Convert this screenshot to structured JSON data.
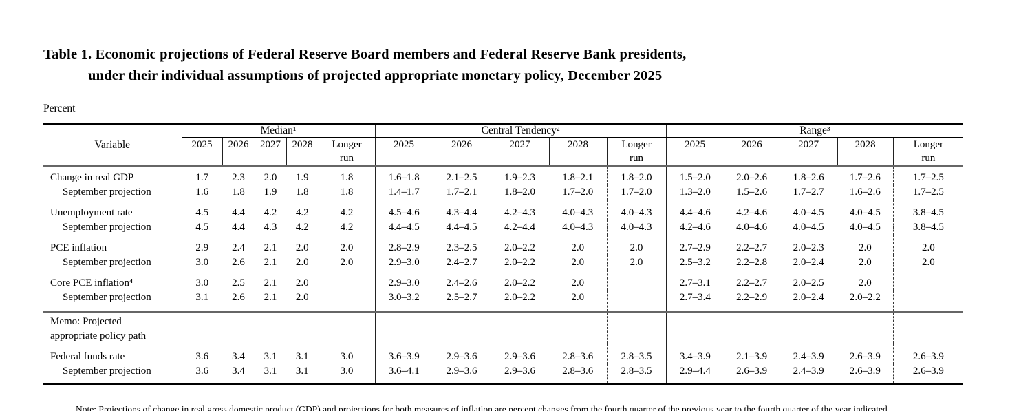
{
  "page": {
    "title_line1": "Table 1. Economic projections of Federal Reserve Board members and Federal Reserve Bank presidents,",
    "title_line2": "under their individual assumptions of projected appropriate monetary policy, December 2025",
    "unit_label": "Percent",
    "note_partial": "Note: Projections of change in real gross domestic product (GDP) and projections for both measures of inflation are percent changes from the fourth quarter of the previous year to the fourth quarter of the year indicated."
  },
  "table": {
    "variable_header": "Variable",
    "group_headers": [
      "Median¹",
      "Central Tendency²",
      "Range³"
    ],
    "year_headers": [
      "2025",
      "2026",
      "2027",
      "2028"
    ],
    "longer_run_lines": [
      "Longer",
      "run"
    ],
    "memo_lines": [
      "Memo: Projected",
      "appropriate policy path"
    ],
    "rows": [
      {
        "type": "data",
        "label": "Change in real GDP",
        "indent": false,
        "group_start": true,
        "first": true,
        "median": [
          "1.7",
          "2.3",
          "2.0",
          "1.9",
          "1.8"
        ],
        "central_tendency": [
          "1.6–1.8",
          "2.1–2.5",
          "1.9–2.3",
          "1.8–2.1",
          "1.8–2.0"
        ],
        "range": [
          "1.5–2.0",
          "2.0–2.6",
          "1.8–2.6",
          "1.7–2.6",
          "1.7–2.5"
        ]
      },
      {
        "type": "data",
        "label": "September projection",
        "indent": true,
        "median": [
          "1.6",
          "1.8",
          "1.9",
          "1.8",
          "1.8"
        ],
        "central_tendency": [
          "1.4–1.7",
          "1.7–2.1",
          "1.8–2.0",
          "1.7–2.0",
          "1.7–2.0"
        ],
        "range": [
          "1.3–2.0",
          "1.5–2.6",
          "1.7–2.7",
          "1.6–2.6",
          "1.7–2.5"
        ]
      },
      {
        "type": "data",
        "label": "Unemployment rate",
        "indent": false,
        "group_start": true,
        "median": [
          "4.5",
          "4.4",
          "4.2",
          "4.2",
          "4.2"
        ],
        "central_tendency": [
          "4.5–4.6",
          "4.3–4.4",
          "4.2–4.3",
          "4.0–4.3",
          "4.0–4.3"
        ],
        "range": [
          "4.4–4.6",
          "4.2–4.6",
          "4.0–4.5",
          "4.0–4.5",
          "3.8–4.5"
        ]
      },
      {
        "type": "data",
        "label": "September projection",
        "indent": true,
        "median": [
          "4.5",
          "4.4",
          "4.3",
          "4.2",
          "4.2"
        ],
        "central_tendency": [
          "4.4–4.5",
          "4.4–4.5",
          "4.2–4.4",
          "4.0–4.3",
          "4.0–4.3"
        ],
        "range": [
          "4.2–4.6",
          "4.0–4.6",
          "4.0–4.5",
          "4.0–4.5",
          "3.8–4.5"
        ]
      },
      {
        "type": "data",
        "label": "PCE inflation",
        "indent": false,
        "group_start": true,
        "median": [
          "2.9",
          "2.4",
          "2.1",
          "2.0",
          "2.0"
        ],
        "central_tendency": [
          "2.8–2.9",
          "2.3–2.5",
          "2.0–2.2",
          "2.0",
          "2.0"
        ],
        "range": [
          "2.7–2.9",
          "2.2–2.7",
          "2.0–2.3",
          "2.0",
          "2.0"
        ]
      },
      {
        "type": "data",
        "label": "September projection",
        "indent": true,
        "median": [
          "3.0",
          "2.6",
          "2.1",
          "2.0",
          "2.0"
        ],
        "central_tendency": [
          "2.9–3.0",
          "2.4–2.7",
          "2.0–2.2",
          "2.0",
          "2.0"
        ],
        "range": [
          "2.5–3.2",
          "2.2–2.8",
          "2.0–2.4",
          "2.0",
          "2.0"
        ]
      },
      {
        "type": "data",
        "label": "Core PCE inflation⁴",
        "indent": false,
        "group_start": true,
        "median": [
          "3.0",
          "2.5",
          "2.1",
          "2.0",
          ""
        ],
        "central_tendency": [
          "2.9–3.0",
          "2.4–2.6",
          "2.0–2.2",
          "2.0",
          ""
        ],
        "range": [
          "2.7–3.1",
          "2.2–2.7",
          "2.0–2.5",
          "2.0",
          ""
        ]
      },
      {
        "type": "data",
        "label": "September projection",
        "indent": true,
        "pad_after": true,
        "median": [
          "3.1",
          "2.6",
          "2.1",
          "2.0",
          ""
        ],
        "central_tendency": [
          "3.0–3.2",
          "2.5–2.7",
          "2.0–2.2",
          "2.0",
          ""
        ],
        "range": [
          "2.7–3.4",
          "2.2–2.9",
          "2.0–2.4",
          "2.0–2.2",
          ""
        ]
      },
      {
        "type": "memo"
      },
      {
        "type": "data",
        "label": "Federal funds rate",
        "indent": false,
        "group_start": true,
        "median": [
          "3.6",
          "3.4",
          "3.1",
          "3.1",
          "3.0"
        ],
        "central_tendency": [
          "3.6–3.9",
          "2.9–3.6",
          "2.9–3.6",
          "2.8–3.6",
          "2.8–3.5"
        ],
        "range": [
          "3.4–3.9",
          "2.1–3.9",
          "2.4–3.9",
          "2.6–3.9",
          "2.6–3.9"
        ]
      },
      {
        "type": "data",
        "label": "September projection",
        "indent": true,
        "median": [
          "3.6",
          "3.4",
          "3.1",
          "3.1",
          "3.0"
        ],
        "central_tendency": [
          "3.6–4.1",
          "2.9–3.6",
          "2.9–3.6",
          "2.8–3.6",
          "2.8–3.5"
        ],
        "range": [
          "2.9–4.4",
          "2.6–3.9",
          "2.4–3.9",
          "2.6–3.9",
          "2.6–3.9"
        ]
      }
    ]
  }
}
